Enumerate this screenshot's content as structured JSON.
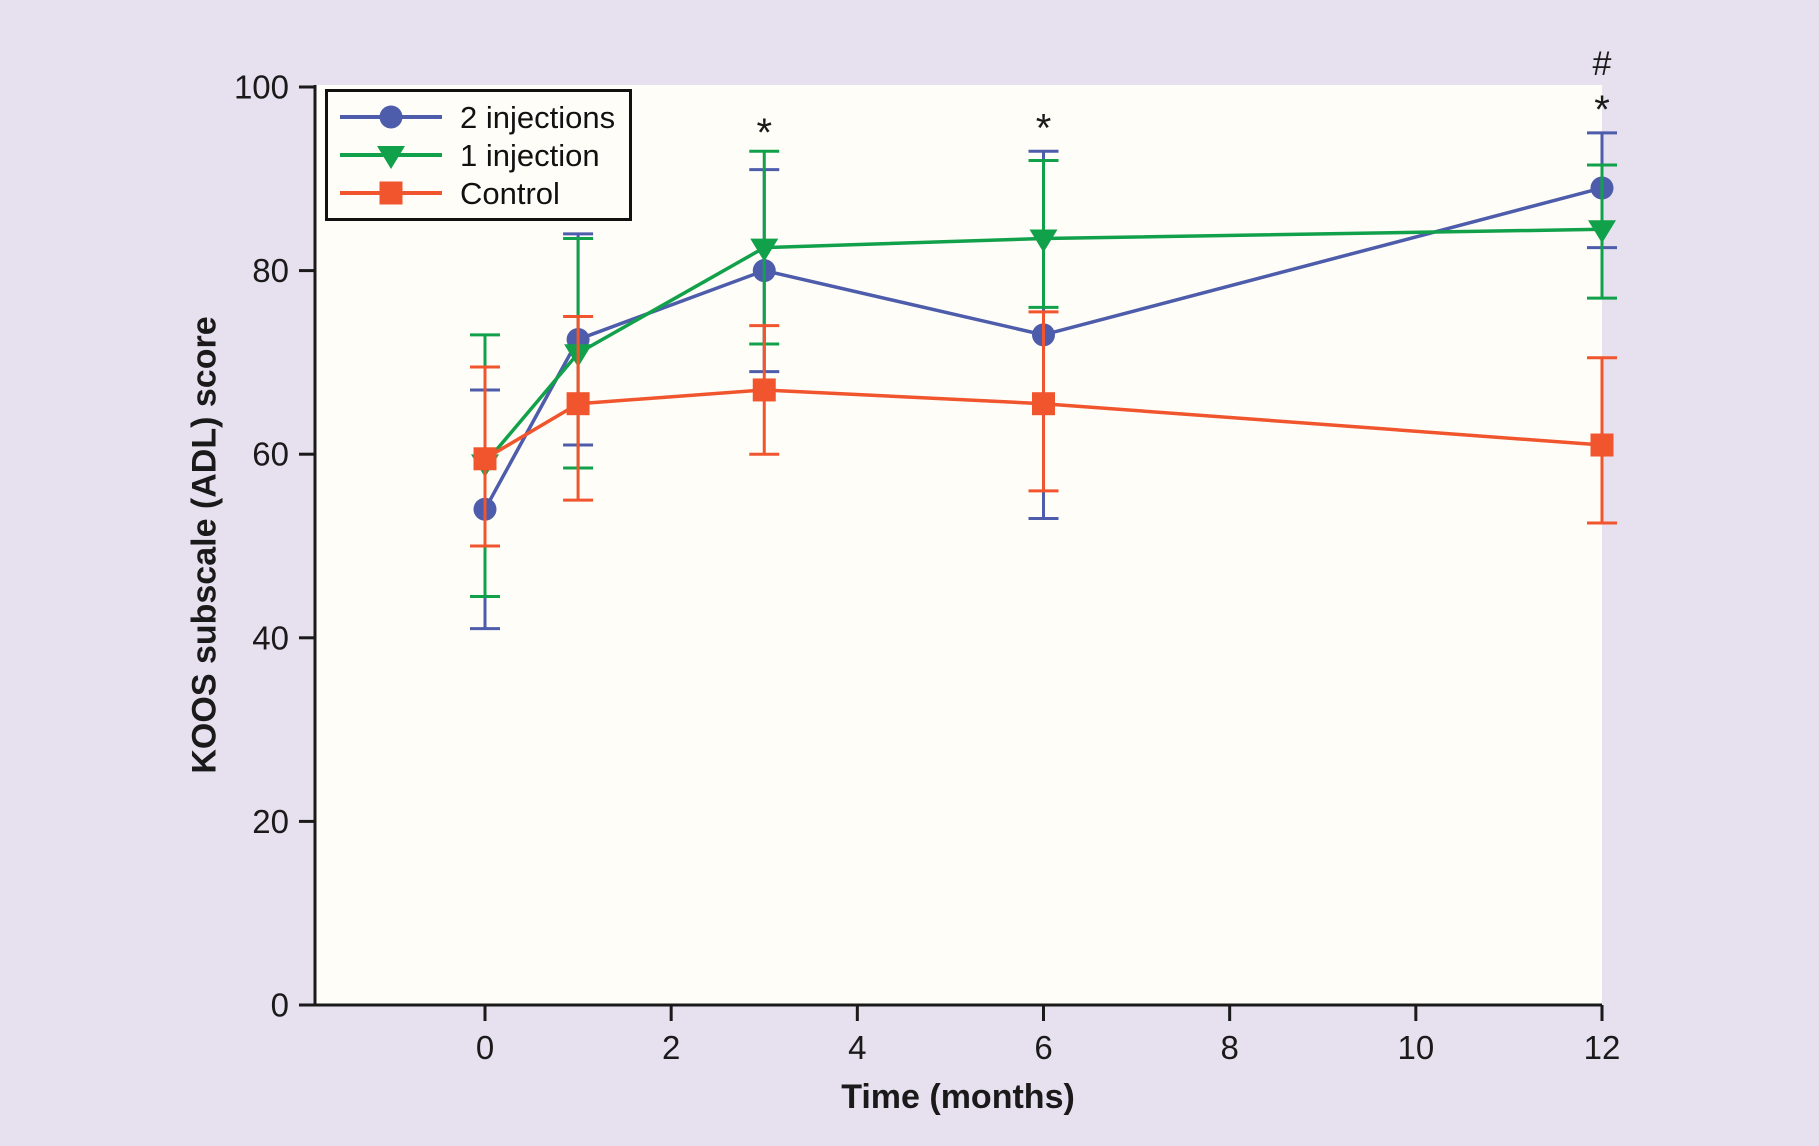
{
  "figure": {
    "background": "#e6e0ef",
    "plot_background": "#fffdf7",
    "axis_color": "#1a1a1a",
    "annotation_hash": "#",
    "annotation_star": "*"
  },
  "chart_data": {
    "type": "line",
    "title": "",
    "xlabel": "Time (months)",
    "ylabel": "KOOS subscale (ADL) score",
    "x": [
      0,
      1,
      3,
      6,
      12
    ],
    "x_axis": {
      "min": 0,
      "max": 12,
      "ticks": [
        0,
        2,
        4,
        6,
        8,
        10,
        12
      ]
    },
    "y_axis": {
      "min": 0,
      "max": 100,
      "ticks": [
        0,
        20,
        40,
        60,
        80,
        100
      ]
    },
    "grid": false,
    "legend_position": "top-left",
    "series": [
      {
        "name": "2 injections",
        "color": "#4d5cab",
        "marker": "circle",
        "values": [
          54,
          72.5,
          80,
          73,
          89
        ],
        "upper": [
          67,
          84,
          91,
          93,
          95
        ],
        "lower": [
          41,
          61,
          69,
          53,
          82.5
        ]
      },
      {
        "name": "1 injection",
        "color": "#12a14b",
        "marker": "triangle-down",
        "values": [
          59,
          71,
          82.5,
          83.5,
          84.5
        ],
        "upper": [
          73,
          83.5,
          93,
          92,
          91.5
        ],
        "lower": [
          44.5,
          58.5,
          72,
          76,
          77
        ]
      },
      {
        "name": "Control",
        "color": "#f0552e",
        "marker": "square",
        "values": [
          59.5,
          65.5,
          67,
          65.5,
          61
        ],
        "upper": [
          69.5,
          75,
          74,
          75.5,
          70.5
        ],
        "lower": [
          50,
          55,
          60,
          56,
          52.5
        ]
      }
    ],
    "annotations": [
      {
        "symbol": "*",
        "x": 3,
        "y": 95
      },
      {
        "symbol": "*",
        "x": 6,
        "y": 95.5
      },
      {
        "symbol": "*",
        "x": 12,
        "y": 97.5
      },
      {
        "symbol": "#",
        "x": 12,
        "y": 102.5
      }
    ]
  }
}
